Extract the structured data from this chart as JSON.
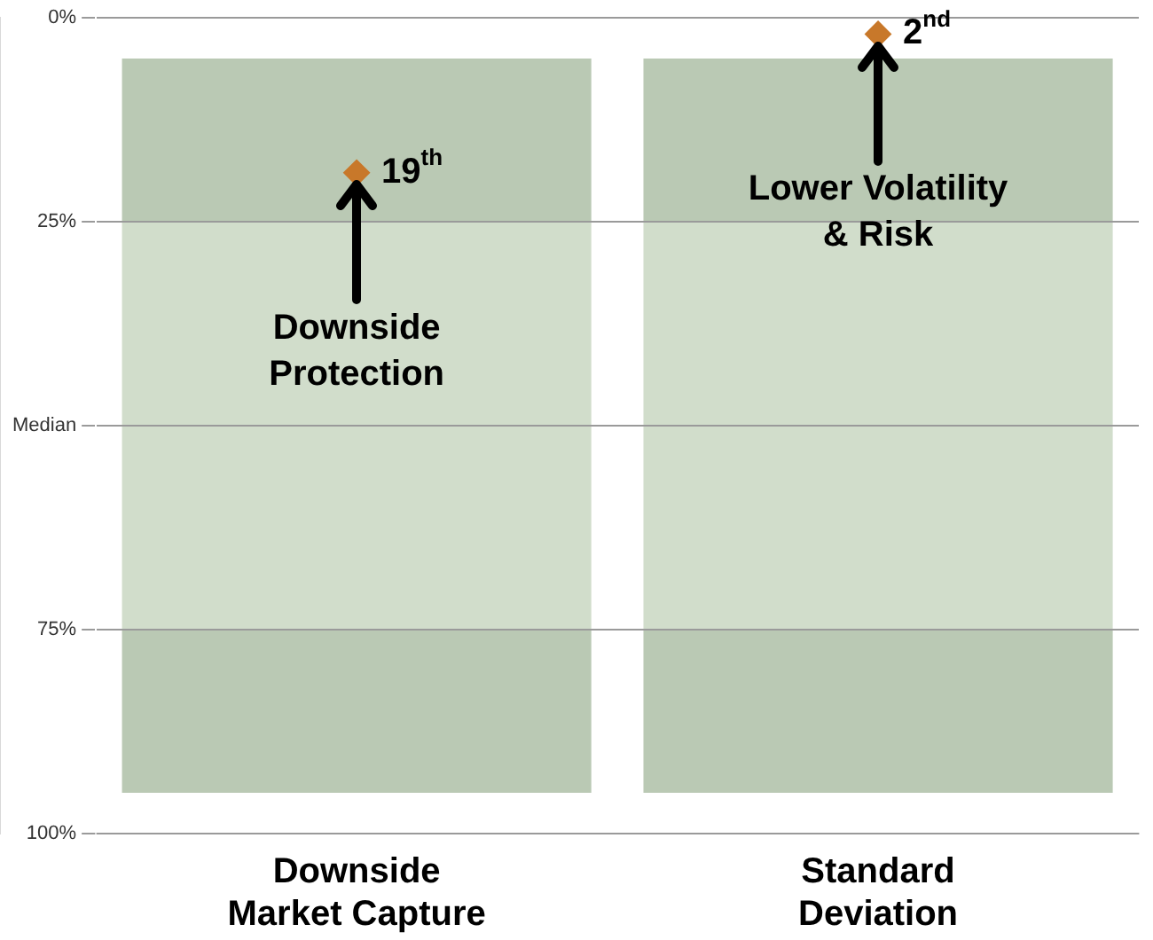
{
  "chart_data": {
    "type": "bar",
    "categories": [
      "Downside Market Capture",
      "Standard Deviation"
    ],
    "series": [
      {
        "color": "#bac9b4",
        "base": [
          5,
          5
        ],
        "values": [
          20,
          20
        ]
      },
      {
        "color": "#d1ddcb",
        "base": [
          25,
          25
        ],
        "values": [
          25,
          25
        ]
      },
      {
        "color": "#d1ddcb",
        "base": [
          50,
          50
        ],
        "values": [
          25,
          25
        ]
      },
      {
        "color": "#bac9b4",
        "base": [
          75,
          75
        ],
        "values": [
          20,
          20
        ]
      },
      {
        "type": "scatter",
        "x": [
          "Downside Market Capture",
          "Standard Deviation"
        ],
        "color": "#c8782a",
        "marker": "diamond",
        "values": [
          19,
          2
        ],
        "value_labels": [
          "19$^{th}$",
          "2$^{nd}$"
        ]
      }
    ],
    "ylim": [
      100,
      0
    ],
    "yticks": [
      {
        "value": 0,
        "label": "0%"
      },
      {
        "value": 25,
        "label": "25%"
      },
      {
        "value": 50,
        "label": "Median"
      },
      {
        "value": 75,
        "label": "75%"
      },
      {
        "value": 100,
        "label": "100%"
      }
    ],
    "grid": "y",
    "annotations": [
      {
        "text": "Downside Protection",
        "x": "Downside Market Capture",
        "y": 19
      },
      {
        "text": "Lower Volatility & Risk",
        "x": "Standard Deviation",
        "y": 2
      }
    ]
  }
}
